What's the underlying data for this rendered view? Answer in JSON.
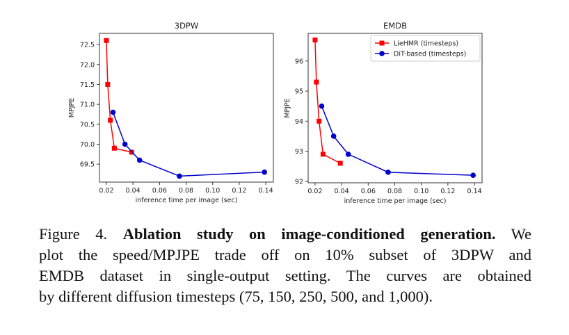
{
  "chart_data": [
    {
      "type": "line",
      "title": "3DPW",
      "xlabel": "inference time per image (sec)",
      "ylabel": "MPJPE",
      "xlim": [
        0.0148,
        0.1457
      ],
      "ylim": [
        69.05,
        72.78
      ],
      "xticks": [
        0.02,
        0.04,
        0.06,
        0.08,
        0.1,
        0.12,
        0.14
      ],
      "xtick_labels": [
        "0.02",
        "0.04",
        "0.06",
        "0.08",
        "0.10",
        "0.12",
        "0.14"
      ],
      "yticks": [
        69.5,
        70.0,
        70.5,
        71.0,
        71.5,
        72.0,
        72.5
      ],
      "ytick_labels": [
        "69.5",
        "70.0",
        "70.5",
        "71.0",
        "71.5",
        "72.0",
        "72.5"
      ],
      "grid": false,
      "legend": null,
      "series": [
        {
          "name": "LieHMR (timesteps)",
          "color": "#ff0000",
          "marker": "square",
          "x": [
            0.02,
            0.021,
            0.023,
            0.026,
            0.039
          ],
          "y": [
            72.6,
            71.5,
            70.6,
            69.9,
            69.8
          ]
        },
        {
          "name": "DiT-based (timesteps)",
          "color": "#0000cc",
          "marker": "circle",
          "x": [
            0.025,
            0.034,
            0.045,
            0.075,
            0.139
          ],
          "y": [
            70.8,
            70.0,
            69.6,
            69.2,
            69.3
          ]
        }
      ]
    },
    {
      "type": "line",
      "title": "EMDB",
      "xlabel": "inference time per image (sec)",
      "ylabel": "MPJPE",
      "xlim": [
        0.0148,
        0.1457
      ],
      "ylim": [
        91.95,
        96.92
      ],
      "xticks": [
        0.02,
        0.04,
        0.06,
        0.08,
        0.1,
        0.12,
        0.14
      ],
      "xtick_labels": [
        "0.02",
        "0.04",
        "0.06",
        "0.08",
        "0.10",
        "0.12",
        "0.14"
      ],
      "yticks": [
        92,
        93,
        94,
        95,
        96
      ],
      "ytick_labels": [
        "92",
        "93",
        "94",
        "95",
        "96"
      ],
      "grid": false,
      "legend": "top-right",
      "series": [
        {
          "name": "LieHMR (timesteps)",
          "color": "#ff0000",
          "marker": "square",
          "x": [
            0.02,
            0.021,
            0.023,
            0.026,
            0.039
          ],
          "y": [
            96.7,
            95.3,
            94.0,
            92.9,
            92.6
          ]
        },
        {
          "name": "DiT-based (timesteps)",
          "color": "#0000cc",
          "marker": "circle",
          "x": [
            0.025,
            0.034,
            0.045,
            0.075,
            0.139
          ],
          "y": [
            94.5,
            93.5,
            92.9,
            92.3,
            92.2
          ]
        }
      ]
    }
  ],
  "caption": {
    "label": "Figure 4.",
    "bold": "Ablation study on image-conditioned generation.",
    "line1_rest": "We",
    "line2": "plot the speed/MPJPE trade off on 10% subset of 3DPW and",
    "line3": "EMDB dataset in single-output setting.  The curves are obtained",
    "line4": "by different diffusion timesteps (75, 150, 250, 500, and 1,000)."
  }
}
